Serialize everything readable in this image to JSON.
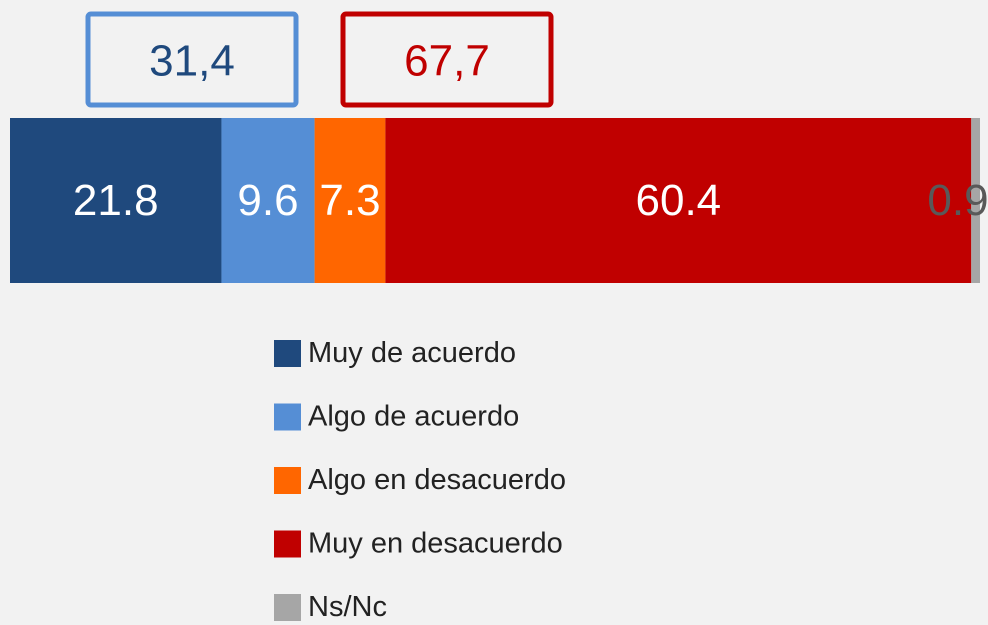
{
  "chart_data": {
    "type": "stacked_bar_horizontal",
    "categories": [
      null
    ],
    "xlim": [
      0,
      100
    ],
    "series": [
      {
        "name": "Muy de acuerdo",
        "color": "#1f497d",
        "label_color": "#ffffff",
        "values": [
          21.8
        ]
      },
      {
        "name": "Algo de acuerdo",
        "color": "#558ed5",
        "label_color": "#ffffff",
        "values": [
          9.6
        ]
      },
      {
        "name": "Algo en desacuerdo",
        "color": "#ff6600",
        "label_color": "#ffffff",
        "values": [
          7.3
        ]
      },
      {
        "name": "Muy en desacuerdo",
        "color": "#c00000",
        "label_color": "#ffffff",
        "values": [
          60.4
        ]
      },
      {
        "name": "Ns/Nc",
        "color": "#a6a6a6",
        "label_color": "#595959",
        "values": [
          0.9
        ]
      }
    ],
    "annotations": [
      {
        "text": "31,4",
        "color": "#1f497d",
        "border": "#558ed5"
      },
      {
        "text": "67,7",
        "color": "#c00000",
        "border": "#c00000"
      }
    ],
    "legend": "bottom"
  }
}
